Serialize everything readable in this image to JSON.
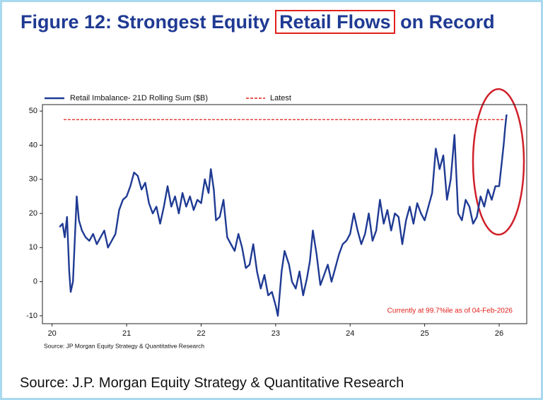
{
  "chart_data": {
    "type": "line",
    "title_parts": [
      "Figure 12: Strongest Equity",
      "Retail Flows",
      "on Record"
    ],
    "title_highlight": 1,
    "source": "Source: J.P. Morgan Equity Strategy & Quantitative Research",
    "chart_source": "Source: JP Morgan Equity Strategy & Quantitative Research",
    "annotation": "Currently at 99.7%ile as of 04-Feb-2026",
    "x": [
      2020.1,
      2020.14,
      2020.17,
      2020.2,
      2020.23,
      2020.25,
      2020.28,
      2020.3,
      2020.33,
      2020.36,
      2020.4,
      2020.45,
      2020.5,
      2020.55,
      2020.6,
      2020.65,
      2020.7,
      2020.75,
      2020.8,
      2020.85,
      2020.9,
      2020.95,
      2021.0,
      2021.05,
      2021.1,
      2021.15,
      2021.2,
      2021.25,
      2021.3,
      2021.35,
      2021.4,
      2021.45,
      2021.5,
      2021.55,
      2021.6,
      2021.65,
      2021.7,
      2021.75,
      2021.8,
      2021.85,
      2021.9,
      2021.95,
      2022.0,
      2022.05,
      2022.1,
      2022.13,
      2022.17,
      2022.2,
      2022.25,
      2022.3,
      2022.35,
      2022.4,
      2022.45,
      2022.5,
      2022.55,
      2022.6,
      2022.65,
      2022.7,
      2022.75,
      2022.8,
      2022.85,
      2022.9,
      2022.95,
      2023.0,
      2023.03,
      2023.08,
      2023.12,
      2023.18,
      2023.22,
      2023.27,
      2023.32,
      2023.37,
      2023.42,
      2023.46,
      2023.5,
      2023.55,
      2023.6,
      2023.65,
      2023.7,
      2023.75,
      2023.8,
      2023.85,
      2023.9,
      2023.95,
      2024.0,
      2024.05,
      2024.1,
      2024.15,
      2024.2,
      2024.25,
      2024.3,
      2024.35,
      2024.4,
      2024.45,
      2024.5,
      2024.55,
      2024.6,
      2024.65,
      2024.7,
      2024.75,
      2024.8,
      2024.85,
      2024.9,
      2024.95,
      2025.0,
      2025.05,
      2025.1,
      2025.15,
      2025.2,
      2025.25,
      2025.3,
      2025.35,
      2025.4,
      2025.45,
      2025.5,
      2025.55,
      2025.6,
      2025.65,
      2025.7,
      2025.75,
      2025.8,
      2025.85,
      2025.9,
      2025.95,
      2026.0,
      2026.03,
      2026.06,
      2026.08,
      2026.1
    ],
    "series": [
      {
        "name": "Retail Imbalance- 21D Rolling Sum ($B)",
        "color": "#1f3a93",
        "values": [
          16,
          17,
          13,
          19,
          3,
          -3,
          0,
          10,
          25,
          18,
          15,
          13,
          12,
          14,
          11,
          13,
          15,
          10,
          12,
          14,
          21,
          24,
          25,
          28,
          32,
          31,
          27,
          29,
          23,
          20,
          22,
          17,
          22,
          28,
          22,
          25,
          20,
          26,
          22,
          25,
          21,
          24,
          23,
          30,
          26,
          33,
          27,
          18,
          19,
          24,
          13,
          11,
          9,
          14,
          10,
          4,
          5,
          11,
          3,
          -2,
          2,
          -4,
          -3,
          -7,
          -10,
          3,
          9,
          5,
          0,
          -2,
          3,
          -4,
          1,
          6,
          15,
          8,
          -1,
          2,
          5,
          0,
          4,
          8,
          11,
          12,
          14,
          20,
          15,
          11,
          14,
          20,
          12,
          15,
          24,
          17,
          21,
          15,
          20,
          19,
          11,
          18,
          22,
          17,
          23,
          20,
          18,
          22,
          26,
          39,
          33,
          37,
          24,
          30,
          43,
          20,
          18,
          24,
          22,
          17,
          19,
          25,
          22,
          27,
          24,
          28,
          28,
          34,
          40,
          45,
          49
        ]
      }
    ],
    "reference_lines": [
      {
        "name": "Latest",
        "value": 47.5,
        "color": "#e0201b"
      }
    ],
    "xlim": [
      2019.87,
      2026.37
    ],
    "xticks": [
      {
        "value": 2020,
        "label": "20"
      },
      {
        "value": 2021,
        "label": "21"
      },
      {
        "value": 2022,
        "label": "22"
      },
      {
        "value": 2023,
        "label": "23"
      },
      {
        "value": 2024,
        "label": "24"
      },
      {
        "value": 2025,
        "label": "25"
      },
      {
        "value": 2026,
        "label": "26"
      }
    ],
    "ylim": [
      -12.3,
      51.9
    ],
    "yticks": [
      -10,
      0,
      10,
      20,
      30,
      40,
      50
    ]
  }
}
